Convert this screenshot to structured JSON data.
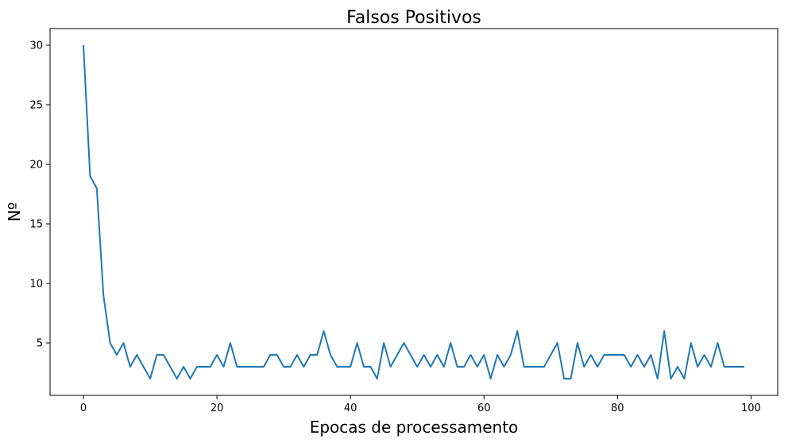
{
  "chart_data": {
    "type": "line",
    "title": "Falsos Positivos",
    "xlabel": "Epocas de processamento",
    "ylabel": "Nº",
    "xlim": [
      -5,
      104
    ],
    "ylim": [
      0.6,
      31.4
    ],
    "xticks": [
      0,
      20,
      40,
      60,
      80,
      100
    ],
    "yticks": [
      5,
      10,
      15,
      20,
      25,
      30
    ],
    "grid": false,
    "line_color": "#1f77b4",
    "series": [
      {
        "x": [
          0,
          1,
          2,
          3,
          4,
          5,
          6,
          7,
          8,
          9,
          10,
          11,
          12,
          13,
          14,
          15,
          16,
          17,
          18,
          19,
          20,
          21,
          22,
          23,
          24,
          25,
          26,
          27,
          28,
          29,
          30,
          31,
          32,
          33,
          34,
          35,
          36,
          37,
          38,
          39,
          40,
          41,
          42,
          43,
          44,
          45,
          46,
          47,
          48,
          49,
          50,
          51,
          52,
          53,
          54,
          55,
          56,
          57,
          58,
          59,
          60,
          61,
          62,
          63,
          64,
          65,
          66,
          67,
          68,
          69,
          70,
          71,
          72,
          73,
          74,
          75,
          76,
          77,
          78,
          79,
          80,
          81,
          82,
          83,
          84,
          85,
          86,
          87,
          88,
          89,
          90,
          91,
          92,
          93,
          94,
          95,
          96,
          97,
          98,
          99
        ],
        "values": [
          30,
          19,
          18,
          9,
          5,
          4,
          5,
          3,
          4,
          3,
          2,
          4,
          4,
          3,
          2,
          3,
          2,
          3,
          3,
          3,
          4,
          3,
          5,
          3,
          3,
          3,
          3,
          3,
          4,
          4,
          3,
          3,
          4,
          3,
          4,
          4,
          6,
          4,
          3,
          3,
          3,
          5,
          3,
          3,
          2,
          5,
          3,
          4,
          5,
          4,
          3,
          4,
          3,
          4,
          3,
          5,
          3,
          3,
          4,
          3,
          4,
          2,
          4,
          3,
          4,
          6,
          3,
          3,
          3,
          3,
          4,
          5,
          2,
          2,
          5,
          3,
          4,
          3,
          4,
          4,
          4,
          4,
          3,
          4,
          3,
          4,
          2,
          6,
          2,
          3,
          2,
          5,
          3,
          4,
          3,
          5,
          3,
          3,
          3,
          3
        ]
      }
    ]
  }
}
